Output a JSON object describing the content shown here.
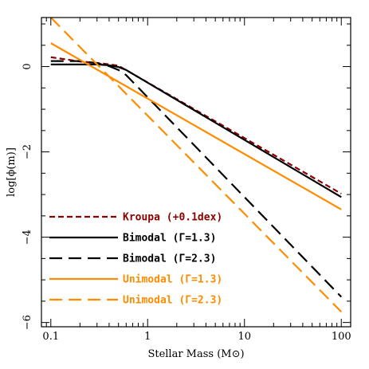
{
  "chart_data": {
    "type": "line",
    "xlabel": "Stellar Mass (M⊙)",
    "ylabel": "log[ϕ(m)]",
    "x_scale": "log",
    "xlim": [
      0.08,
      125
    ],
    "ylim": [
      -6.1,
      1.15
    ],
    "x_ticks": [
      {
        "value": 0.1,
        "label": "0.1"
      },
      {
        "value": 1,
        "label": "1"
      },
      {
        "value": 10,
        "label": "10"
      },
      {
        "value": 100,
        "label": "100"
      }
    ],
    "y_ticks": [
      {
        "value": 0,
        "label": "0"
      },
      {
        "value": -2,
        "label": "−2"
      },
      {
        "value": -4,
        "label": "−4"
      },
      {
        "value": -6,
        "label": "−6"
      }
    ],
    "legend_position": "bottom-left",
    "series": [
      {
        "name": "Kroupa (+0.1dex)",
        "color": "#8b0000",
        "dash": "short-dash",
        "points": [
          [
            0.1,
            0.22
          ],
          [
            0.2,
            0.12
          ],
          [
            0.35,
            0.07
          ],
          [
            0.5,
            0.02
          ],
          [
            100,
            -2.98
          ]
        ]
      },
      {
        "name": "Bimodal (Γ=1.3)",
        "color": "#000000",
        "dash": "solid",
        "points": [
          [
            0.1,
            0.05
          ],
          [
            0.2,
            0.05
          ],
          [
            0.3,
            0.05
          ],
          [
            0.4,
            0.03
          ],
          [
            0.5,
            -0.01
          ],
          [
            0.6,
            -0.08
          ],
          [
            100,
            -3.06
          ]
        ]
      },
      {
        "name": "Bimodal (Γ=2.3)",
        "color": "#000000",
        "dash": "long-dash",
        "points": [
          [
            0.1,
            0.13
          ],
          [
            0.2,
            0.13
          ],
          [
            0.3,
            0.08
          ],
          [
            0.4,
            0.01
          ],
          [
            0.5,
            -0.08
          ],
          [
            0.6,
            -0.2
          ],
          [
            100,
            -5.4
          ]
        ]
      },
      {
        "name": "Unimodal (Γ=1.3)",
        "color": "#ff8c00",
        "dash": "solid",
        "points": [
          [
            0.1,
            0.55
          ],
          [
            100,
            -3.35
          ]
        ]
      },
      {
        "name": "Unimodal (Γ=2.3)",
        "color": "#ff8c00",
        "dash": "long-dash",
        "points": [
          [
            0.1,
            1.15
          ],
          [
            100,
            -5.75
          ]
        ]
      }
    ]
  }
}
